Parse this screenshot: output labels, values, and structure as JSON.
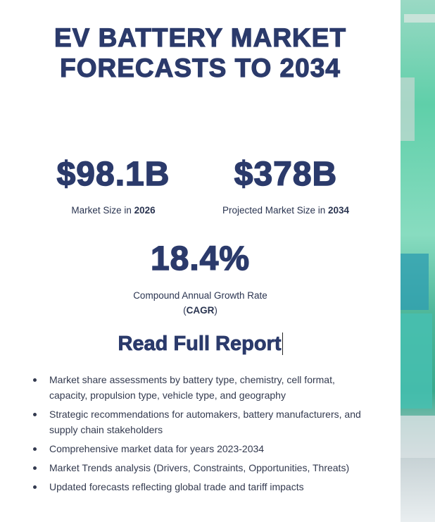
{
  "header": {
    "title_lines": [
      "EV BATTERY MARKET",
      "FORECASTS TO 2034"
    ]
  },
  "stats": [
    {
      "value": "$98.1B",
      "label": "Market Size in ",
      "label_bold": "2026"
    },
    {
      "value": "$378B",
      "label": "Projected Market Size in ",
      "label_bold": "2034"
    }
  ],
  "growth": {
    "value": "18.4%",
    "label": "Compound Annual Growth Rate",
    "abbr_open": "(",
    "abbr": "CAGR",
    "abbr_close": ")"
  },
  "cta": "Read Full Report",
  "bullets": [
    "Market share assessments by battery type, chemistry, cell format, capacity, propulsion type, vehicle type, and geography",
    "Strategic recommendations for automakers, battery manufacturers, and supply chain stakeholders",
    "Comprehensive market data for years 2023-2034",
    "Market Trends analysis (Drivers, Constraints, Opportunities, Threats)",
    "Updated forecasts reflecting global trade and tariff impacts"
  ]
}
